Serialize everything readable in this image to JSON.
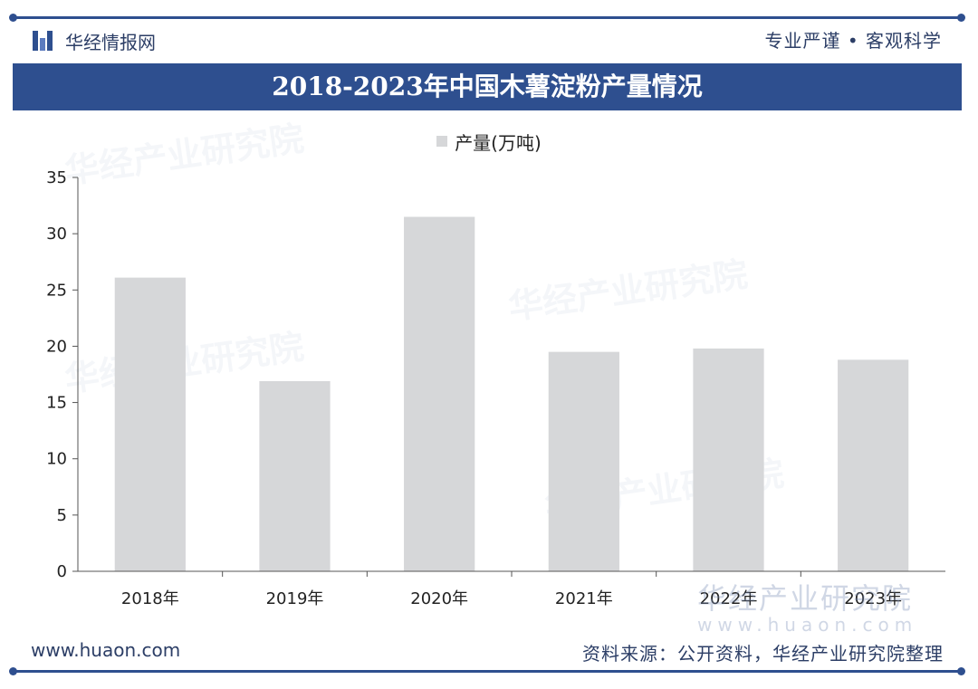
{
  "header": {
    "brand": "华经情报网",
    "tagline": "专业严谨 • 客观科学",
    "title": "2018-2023年中国木薯淀粉产量情况"
  },
  "footer": {
    "site": "www.huaon.com",
    "source": "资料来源：公开资料，华经产业研究院整理"
  },
  "watermark": {
    "text": "华经产业研究院",
    "url": "www.huaon.com"
  },
  "colors": {
    "bar": "#d6d7d9",
    "accent": "#2e4f8f"
  },
  "chart_data": {
    "type": "bar",
    "categories": [
      "2018年",
      "2019年",
      "2020年",
      "2021年",
      "2022年",
      "2023年"
    ],
    "series": [
      {
        "name": "产量(万吨)",
        "values": [
          26.1,
          16.9,
          31.5,
          19.5,
          19.8,
          18.8
        ]
      }
    ],
    "ylim": [
      0,
      35
    ],
    "yticks": [
      0,
      5,
      10,
      15,
      20,
      25,
      30,
      35
    ],
    "legend_position": "top-center",
    "grid": false
  }
}
